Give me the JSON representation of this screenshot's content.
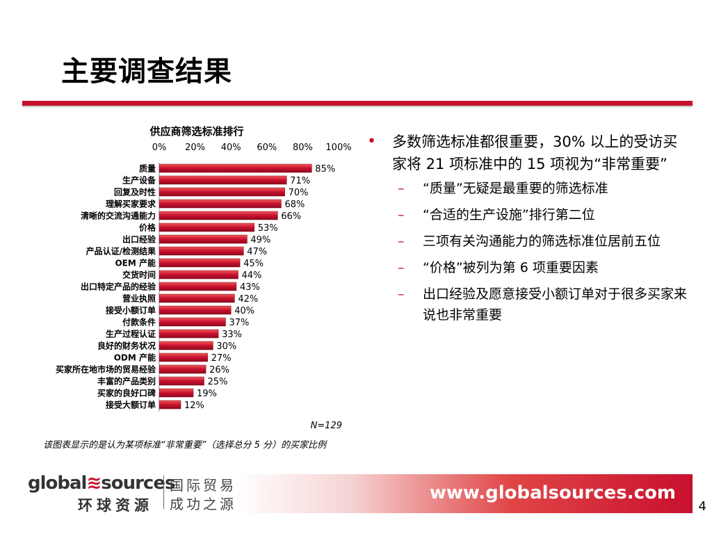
{
  "slide": {
    "title": "主要调查结果",
    "page_number": "4"
  },
  "chart_data": {
    "type": "bar",
    "orientation": "horizontal",
    "title": "供应商筛选标准排行",
    "xlim": [
      0,
      100
    ],
    "tick_labels": [
      "0%",
      "20%",
      "40%",
      "60%",
      "80%",
      "100%"
    ],
    "categories": [
      "质量",
      "生产设备",
      "回复及时性",
      "理解买家要求",
      "清晰的交流沟通能力",
      "价格",
      "出口经验",
      "产品认证/检测结果",
      "OEM 产能",
      "交货时间",
      "出口特定产品的经验",
      "营业执照",
      "接受小额订单",
      "付款条件",
      "生产过程认证",
      "良好的财务状况",
      "ODM 产能",
      "买家所在地市场的贸易经验",
      "丰富的产品类别",
      "买家的良好口碑",
      "接受大额订单"
    ],
    "values": [
      85,
      71,
      70,
      68,
      66,
      53,
      49,
      47,
      45,
      44,
      43,
      42,
      40,
      37,
      33,
      30,
      27,
      26,
      25,
      19,
      12
    ],
    "value_labels": [
      "85%",
      "71%",
      "70%",
      "68%",
      "66%",
      "53%",
      "49%",
      "47%",
      "45%",
      "44%",
      "43%",
      "42%",
      "40%",
      "37%",
      "33%",
      "30%",
      "27%",
      "26%",
      "25%",
      "19%",
      "12%"
    ],
    "bar_color": "#c8102e",
    "grid": false,
    "sample_note": "N=129"
  },
  "note": "该图表显示的是认为某项标准“非常重要”（选择总分 5 分）的买家比例",
  "bullets": {
    "main": "多数筛选标准都很重要，30% 以上的受访买家将 21 项标准中的 15 项视为“非常重要”",
    "main_marker": "•",
    "sub_marker": "–",
    "sub": [
      "“质量”无疑是最重要的筛选标准",
      "“合适的生产设施”排行第二位",
      "三项有关沟通能力的筛选标准位居前五位",
      "“价格”被列为第 6 项重要因素",
      "出口经验及愿意接受小额订单对于很多买家来说也非常重要"
    ]
  },
  "footer": {
    "logo_text_left": "global",
    "logo_text_right": "sources",
    "logo_swirl": "≋",
    "logo_chinese": "环球资源",
    "slogan_line1": "国际贸易",
    "slogan_line2": "成功之源",
    "url": "www.globalsources.com"
  }
}
